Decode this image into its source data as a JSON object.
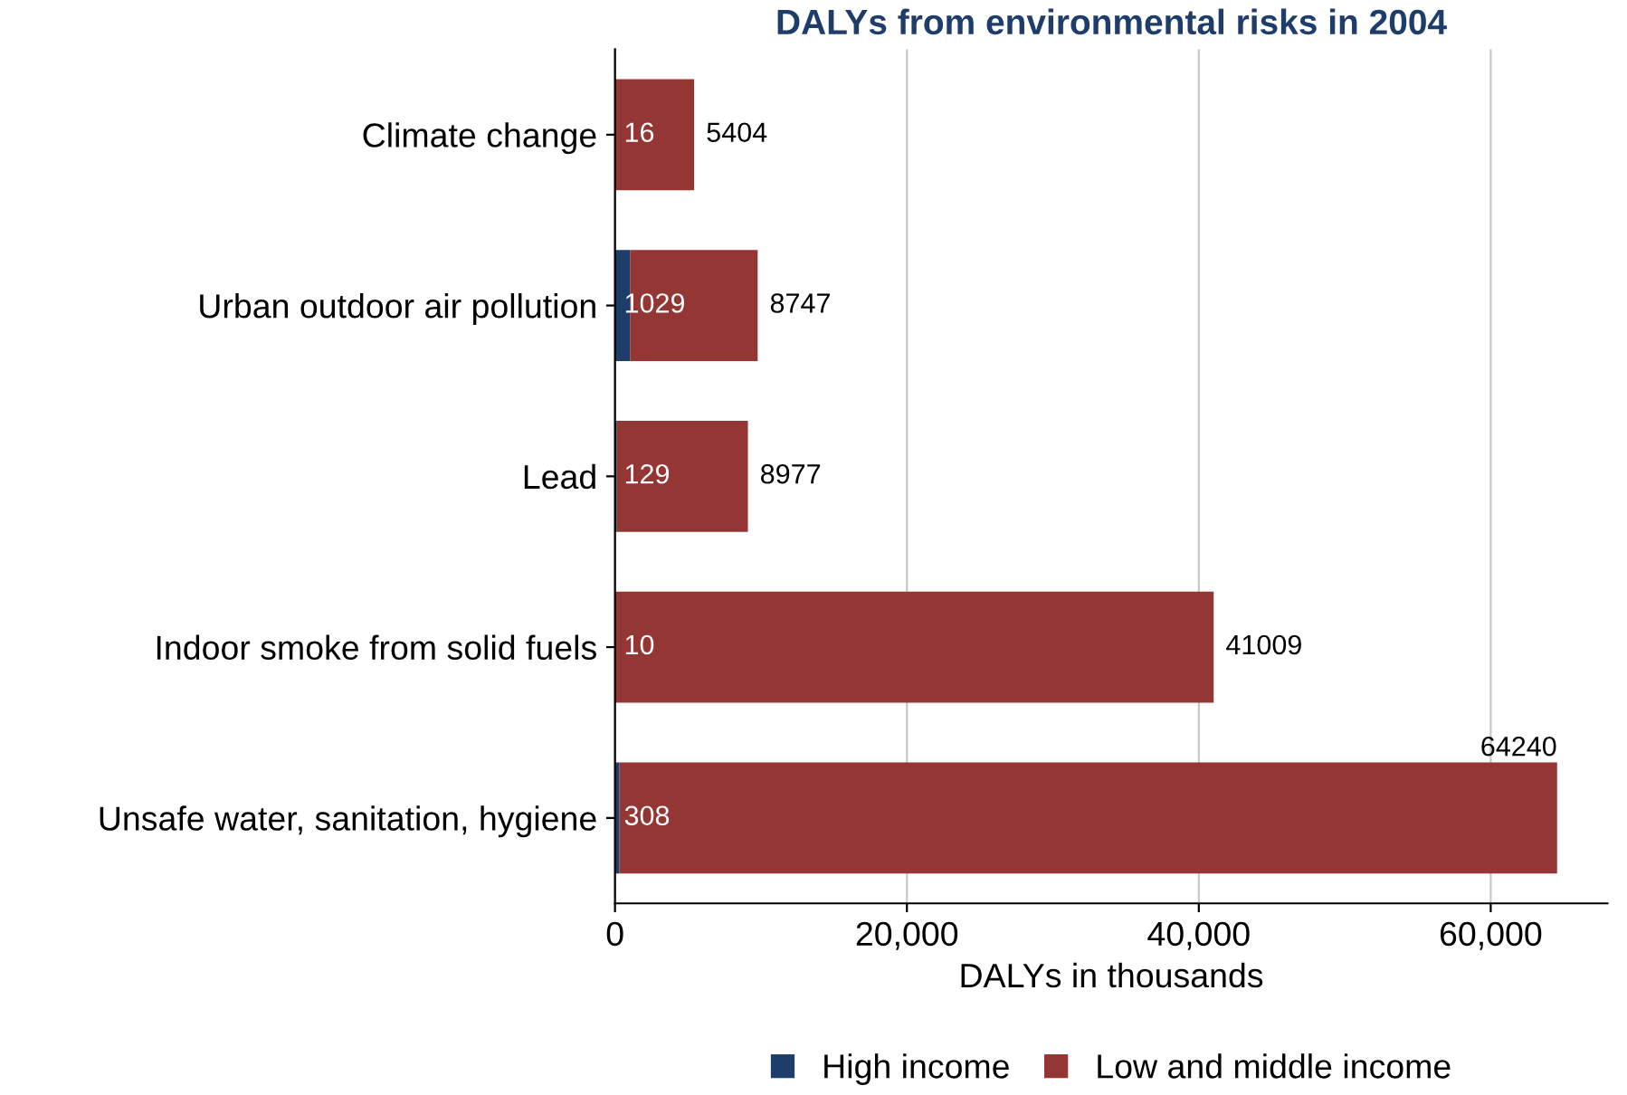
{
  "chart_data": {
    "type": "bar",
    "orientation": "horizontal",
    "stacked": true,
    "title": "DALYs from environmental risks in 2004",
    "xlabel": "DALYs in thousands",
    "categories": [
      "Climate change",
      "Urban outdoor air pollution",
      "Lead",
      "Indoor smoke from solid fuels",
      "Unsafe water, sanitation, hygiene"
    ],
    "series": [
      {
        "name": "High income",
        "color": "#1f3d6b",
        "values": [
          16,
          1029,
          129,
          10,
          308
        ]
      },
      {
        "name": "Low and middle income",
        "color": "#943634",
        "values": [
          5404,
          8747,
          8977,
          41009,
          64240
        ]
      }
    ],
    "xlim": [
      0,
      68000
    ],
    "xticks": [
      {
        "value": 0,
        "label": "0"
      },
      {
        "value": 20000,
        "label": "20,000"
      },
      {
        "value": 40000,
        "label": "40,000"
      },
      {
        "value": 60000,
        "label": "60,000"
      }
    ],
    "grid": "x",
    "legend": "bottom",
    "data_labels": true
  }
}
